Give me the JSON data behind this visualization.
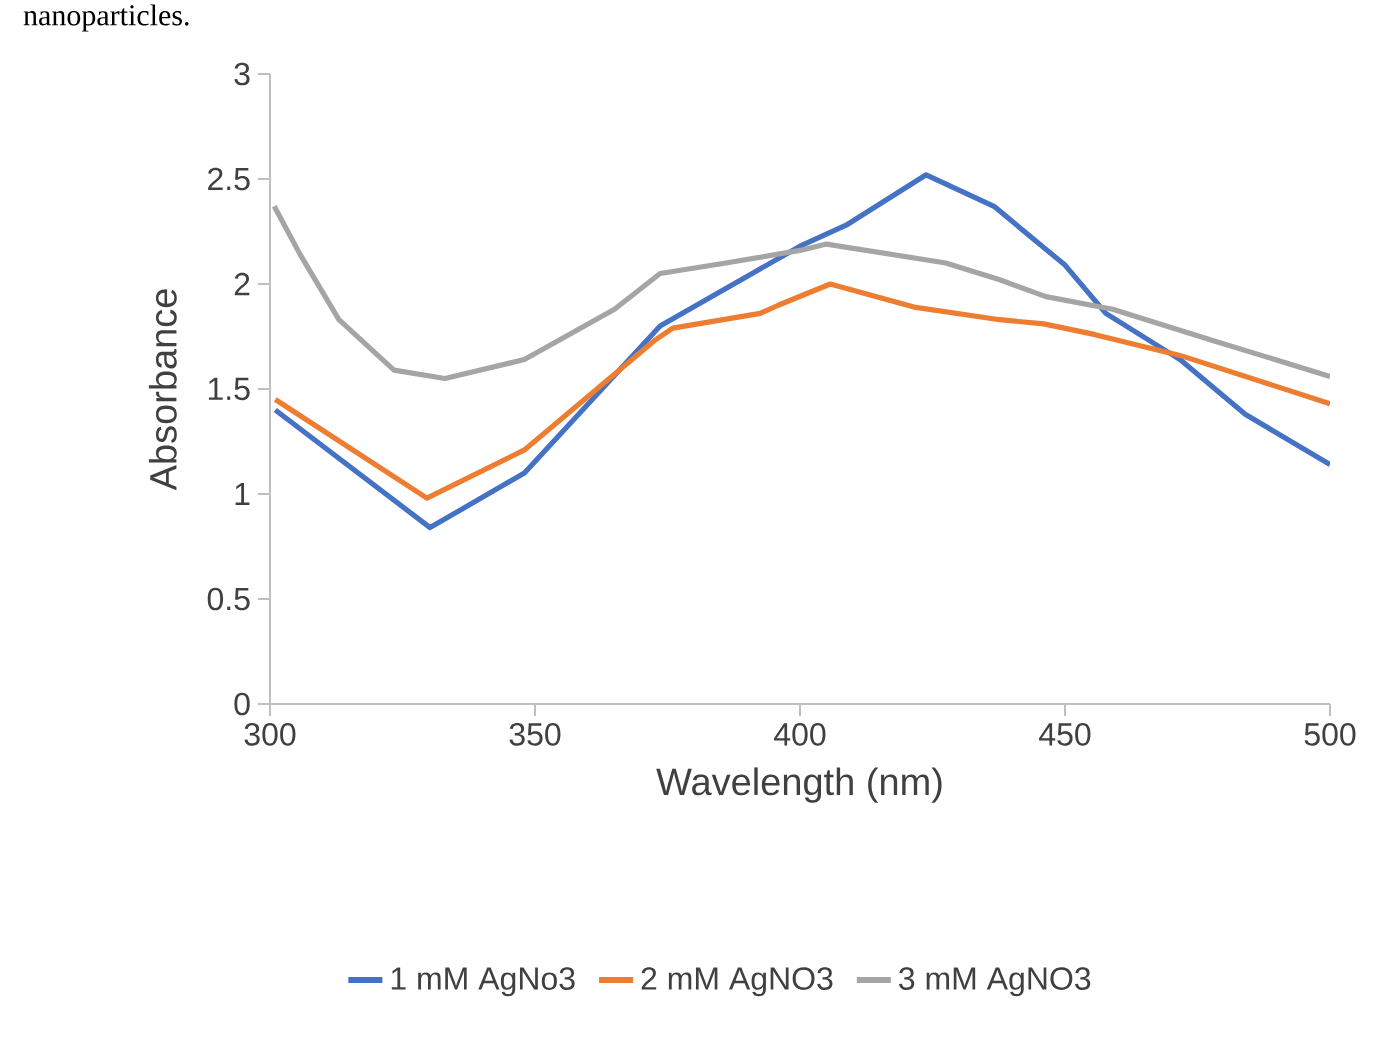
{
  "chart_data": {
    "type": "line",
    "xlabel": "Wavelength (nm)",
    "ylabel": "Absorbance",
    "annotations": [
      "nanoparticles."
    ],
    "xlim": [
      300,
      500
    ],
    "ylim": [
      0,
      3
    ],
    "xticks": [
      300,
      350,
      400,
      450,
      500
    ],
    "yticks": [
      0,
      0.5,
      1,
      1.5,
      2,
      2.5,
      3
    ],
    "grid": false,
    "legend": "bottom",
    "marker": "none",
    "line_style": "solid",
    "series": [
      {
        "name": "1 mM AgNo3",
        "color": "#4472c4",
        "x": [
          301,
          330.2,
          348,
          373.6,
          400,
          408.7,
          423.8,
          436.6,
          450,
          457.7,
          471.7,
          484,
          500
        ],
        "values": [
          1.4,
          0.84,
          1.1,
          1.8,
          2.18,
          2.28,
          2.52,
          2.37,
          2.09,
          1.86,
          1.64,
          1.38,
          1.14
        ]
      },
      {
        "name": "2 mM AgNO3",
        "color": "#ed7d31",
        "x": [
          301,
          329.6,
          348,
          372.5,
          376,
          392.5,
          396,
          405.7,
          421.5,
          437.7,
          446,
          455.5,
          471.7,
          500
        ],
        "values": [
          1.45,
          0.98,
          1.21,
          1.73,
          1.79,
          1.86,
          1.9,
          2.0,
          1.89,
          1.83,
          1.81,
          1.76,
          1.66,
          1.43
        ]
      },
      {
        "name": "3 mM AgNO3",
        "color": "#a5a5a5",
        "x": [
          300.8,
          305.7,
          313,
          323.4,
          333,
          348,
          365,
          373.6,
          386,
          400,
          405,
          427.5,
          437.7,
          446.4,
          459,
          478,
          500
        ],
        "values": [
          2.37,
          2.14,
          1.83,
          1.59,
          1.55,
          1.64,
          1.88,
          2.05,
          2.1,
          2.16,
          2.19,
          2.1,
          2.02,
          1.94,
          1.88,
          1.73,
          1.56
        ]
      }
    ]
  }
}
